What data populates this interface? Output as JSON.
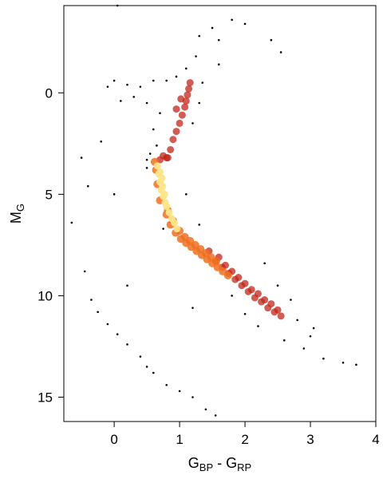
{
  "chart_data": {
    "type": "scatter",
    "xlabel": [
      {
        "text": "G",
        "sub": "BP"
      },
      {
        "text": " - G",
        "sub": "RP"
      }
    ],
    "ylabel": {
      "text": "M",
      "sub": "G"
    },
    "xlim": [
      -0.77,
      4
    ],
    "xticks": [
      0,
      1,
      2,
      3,
      4
    ],
    "ylim": [
      -4.3,
      16.2
    ],
    "y_inverted": true,
    "yticks": [
      0,
      5,
      10,
      15
    ],
    "legend": false,
    "series": [
      {
        "color": "#000000",
        "x": [
          1.3,
          1.5,
          1.8,
          2.0,
          1.6,
          1.25,
          1.1,
          0.95,
          0.8,
          0.6,
          0.4,
          0.2,
          0.0,
          -0.1,
          0.1,
          0.3,
          0.5,
          0.7,
          0.6,
          0.65,
          0.55,
          0.5,
          1.2,
          1.3,
          1.35,
          -0.5,
          -0.4,
          -0.2,
          0.0,
          -0.65,
          0.2,
          -0.45,
          -0.35,
          -0.25,
          -0.1,
          0.05,
          0.2,
          0.4,
          0.5,
          0.6,
          0.8,
          1.0,
          1.2,
          1.4,
          1.55,
          1.2,
          2.2,
          2.6,
          2.9,
          3.2,
          3.5,
          3.7,
          3.05,
          2.8,
          2.0,
          1.8,
          2.5,
          2.7,
          3.0,
          2.3,
          1.3,
          0.75,
          0.5,
          1.1,
          1.6,
          2.4,
          2.55,
          0.05
        ],
        "y": [
          -2.8,
          -3.2,
          -3.6,
          -3.4,
          -2.6,
          -1.8,
          -1.2,
          -0.8,
          -0.6,
          -0.6,
          -0.3,
          -0.4,
          -0.6,
          -0.3,
          0.4,
          0.2,
          0.5,
          1.0,
          1.8,
          2.6,
          3.0,
          3.3,
          1.5,
          0.5,
          -0.5,
          3.2,
          4.6,
          2.4,
          5.0,
          6.4,
          9.5,
          8.8,
          10.2,
          10.8,
          11.4,
          11.9,
          12.4,
          13.0,
          13.5,
          13.8,
          14.4,
          14.7,
          15.0,
          15.6,
          15.9,
          10.6,
          11.5,
          12.2,
          12.6,
          13.1,
          13.3,
          13.4,
          11.6,
          11.2,
          10.9,
          10.0,
          9.5,
          10.2,
          12.0,
          8.4,
          6.5,
          6.7,
          3.7,
          5.0,
          -1.4,
          -2.6,
          -2.0,
          -4.3
        ]
      },
      {
        "color": "#c0261a",
        "x": [
          1.45,
          1.55,
          1.65,
          1.75,
          1.85,
          1.95,
          2.05,
          2.15,
          2.25,
          2.35,
          2.45,
          2.55,
          1.6,
          1.7,
          1.8,
          1.9,
          2.0,
          2.1,
          2.2,
          2.3,
          2.4,
          2.5,
          0.82,
          0.86,
          0.9,
          0.95,
          1.0,
          1.04,
          1.08,
          1.1,
          1.12,
          1.14,
          1.16,
          0.95,
          1.02,
          0.7,
          0.75,
          0.8
        ],
        "y": [
          7.8,
          8.3,
          8.6,
          8.9,
          9.2,
          9.5,
          9.8,
          10.1,
          10.3,
          10.6,
          10.8,
          11.0,
          8.1,
          8.5,
          8.8,
          9.1,
          9.4,
          9.7,
          9.9,
          10.2,
          10.4,
          10.7,
          3.2,
          2.8,
          2.3,
          1.9,
          1.5,
          1.1,
          0.7,
          0.4,
          0.1,
          -0.2,
          -0.5,
          0.8,
          0.3,
          3.3,
          3.1,
          3.2
        ]
      },
      {
        "color": "#f07020",
        "x": [
          0.62,
          0.64,
          0.66,
          0.7,
          0.8,
          0.86,
          0.94,
          1.02,
          1.1,
          1.18,
          1.26,
          1.34,
          1.42,
          1.5,
          1.58,
          0.82,
          0.9,
          1.0,
          1.08,
          1.16,
          1.24,
          1.32,
          1.4,
          1.48,
          1.56,
          1.66,
          1.74
        ],
        "y": [
          3.4,
          3.8,
          4.5,
          5.3,
          6.0,
          6.5,
          6.9,
          7.2,
          7.4,
          7.6,
          7.8,
          8.0,
          8.2,
          8.4,
          8.6,
          5.8,
          6.3,
          6.8,
          7.1,
          7.3,
          7.5,
          7.7,
          7.9,
          8.1,
          8.3,
          8.8,
          9.0
        ]
      },
      {
        "color": "#fde58a",
        "x": [
          0.66,
          0.68,
          0.7,
          0.72,
          0.75,
          0.78,
          0.7,
          0.74,
          0.8,
          0.84,
          0.88,
          0.92,
          0.96,
          0.73,
          0.77
        ],
        "y": [
          3.6,
          4.0,
          4.4,
          4.8,
          5.1,
          5.4,
          3.9,
          4.6,
          5.6,
          5.9,
          6.2,
          6.4,
          6.7,
          4.2,
          5.0
        ]
      }
    ]
  }
}
